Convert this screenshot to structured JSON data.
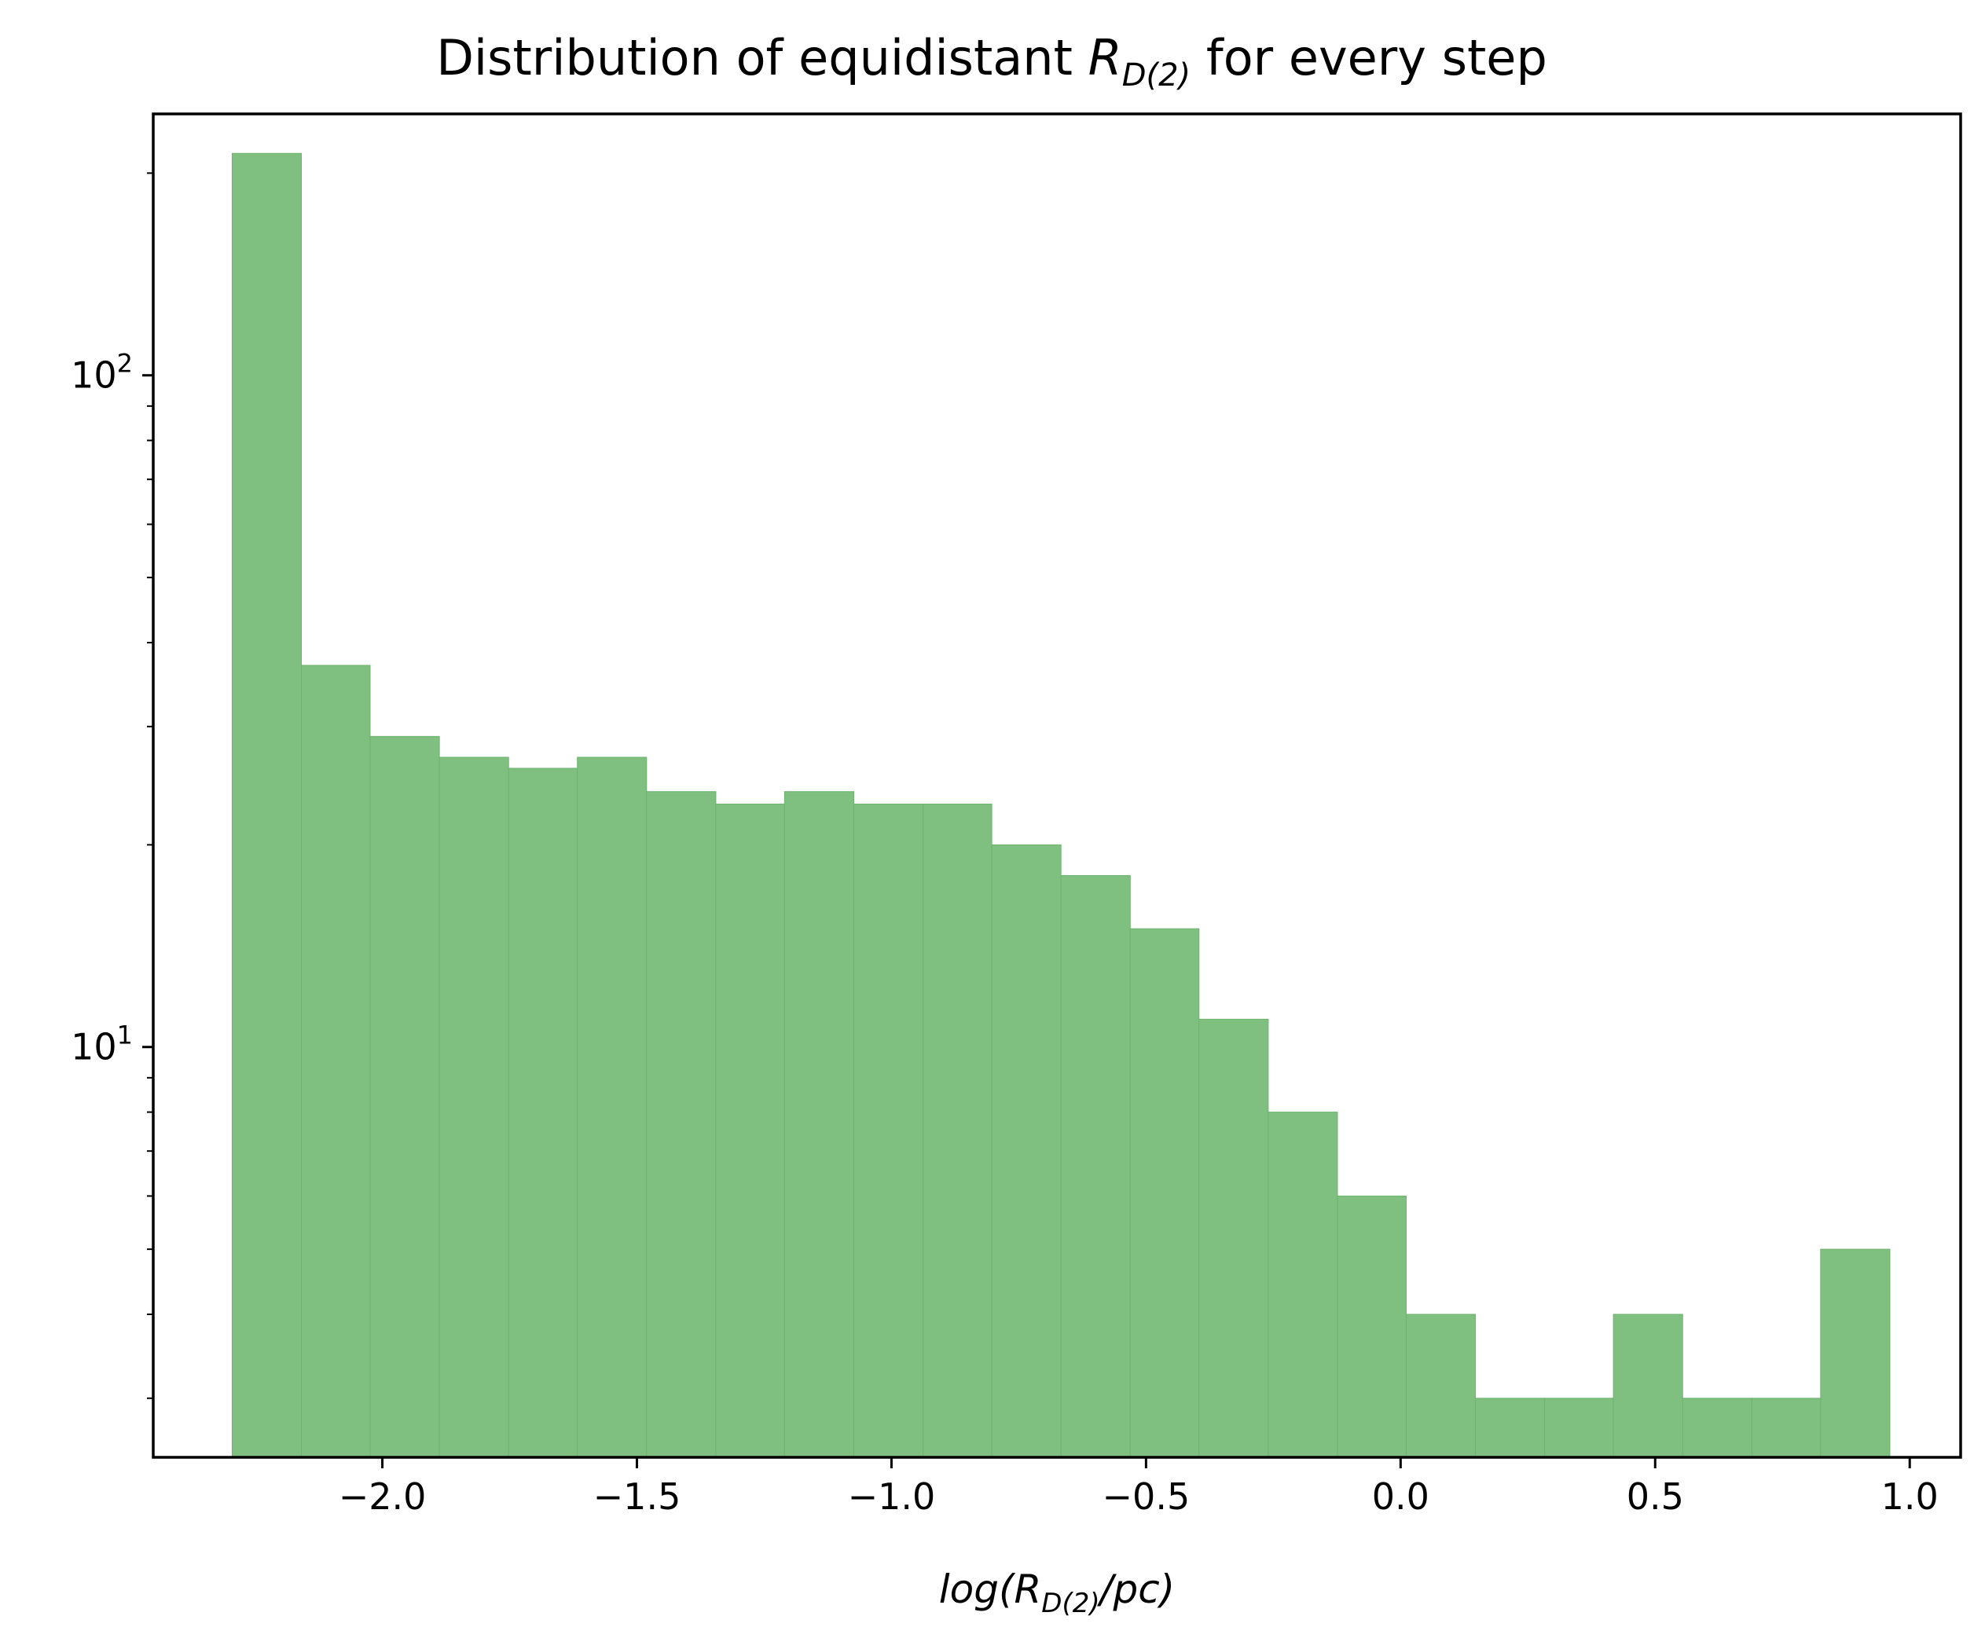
{
  "chart_data": {
    "type": "bar",
    "title_prefix": "Distribution of equidistant ",
    "title_var": "R",
    "title_sub": "D(2)",
    "title_suffix": " for every step",
    "xlabel_prefix": "log(",
    "xlabel_var": "R",
    "xlabel_sub": "D(2)",
    "xlabel_suffix": "/pc)",
    "ylabel": "",
    "x_scale": "linear",
    "y_scale": "log",
    "xlim": [
      -2.45,
      1.1
    ],
    "ylim": [
      2.45,
      245
    ],
    "xticks": [
      -2.0,
      -1.5,
      -1.0,
      -0.5,
      0.0,
      0.5,
      1.0
    ],
    "xtick_labels": [
      "−2.0",
      "−1.5",
      "−1.0",
      "−0.5",
      "0.0",
      "0.5",
      "1.0"
    ],
    "yticks_major": [
      10,
      100
    ],
    "ytick_labels": [
      {
        "base": "10",
        "exp": "1"
      },
      {
        "base": "10",
        "exp": "2"
      }
    ],
    "yticks_minor": [
      3,
      4,
      5,
      6,
      7,
      8,
      9,
      20,
      30,
      40,
      50,
      60,
      70,
      80,
      90,
      200
    ],
    "grid": false,
    "bar_color": "#7fbf7f",
    "bar_edge": "#6eb36e",
    "bin_edges": [
      -2.295,
      -2.159,
      -2.024,
      -1.888,
      -1.752,
      -1.617,
      -1.481,
      -1.345,
      -1.21,
      -1.074,
      -0.938,
      -0.803,
      -0.667,
      -0.531,
      -0.396,
      -0.26,
      -0.124,
      0.011,
      0.147,
      0.283,
      0.418,
      0.554,
      0.69,
      0.825,
      0.961
    ],
    "values": [
      214,
      37,
      29,
      27,
      26,
      27,
      24,
      23,
      24,
      23,
      23,
      20,
      18,
      15,
      11,
      8,
      6,
      4,
      3,
      3,
      4,
      3,
      3,
      5
    ]
  }
}
